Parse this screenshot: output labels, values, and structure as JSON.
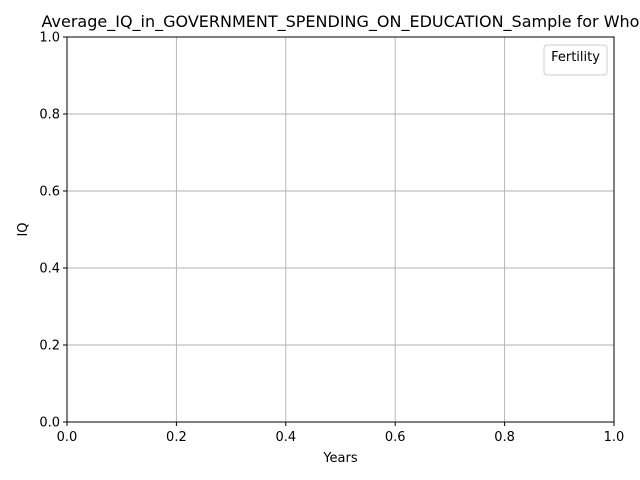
{
  "chart_data": {
    "type": "line",
    "title": "Average_IQ_in_GOVERNMENT_SPENDING_ON_EDUCATION_Sample for Who",
    "xlabel": "Years",
    "ylabel": "IQ",
    "xlim": [
      0.0,
      1.0
    ],
    "ylim": [
      0.0,
      1.0
    ],
    "x_ticks": [
      "0.0",
      "0.2",
      "0.4",
      "0.6",
      "0.8",
      "1.0"
    ],
    "y_ticks": [
      "0.0",
      "0.2",
      "0.4",
      "0.6",
      "0.8",
      "1.0"
    ],
    "grid": true,
    "legend": {
      "title": "Fertility",
      "placement": "top-right",
      "entries": []
    },
    "series": [],
    "colors": {
      "grid": "#b0b0b0",
      "axis": "#000000",
      "background": "#ffffff"
    }
  }
}
